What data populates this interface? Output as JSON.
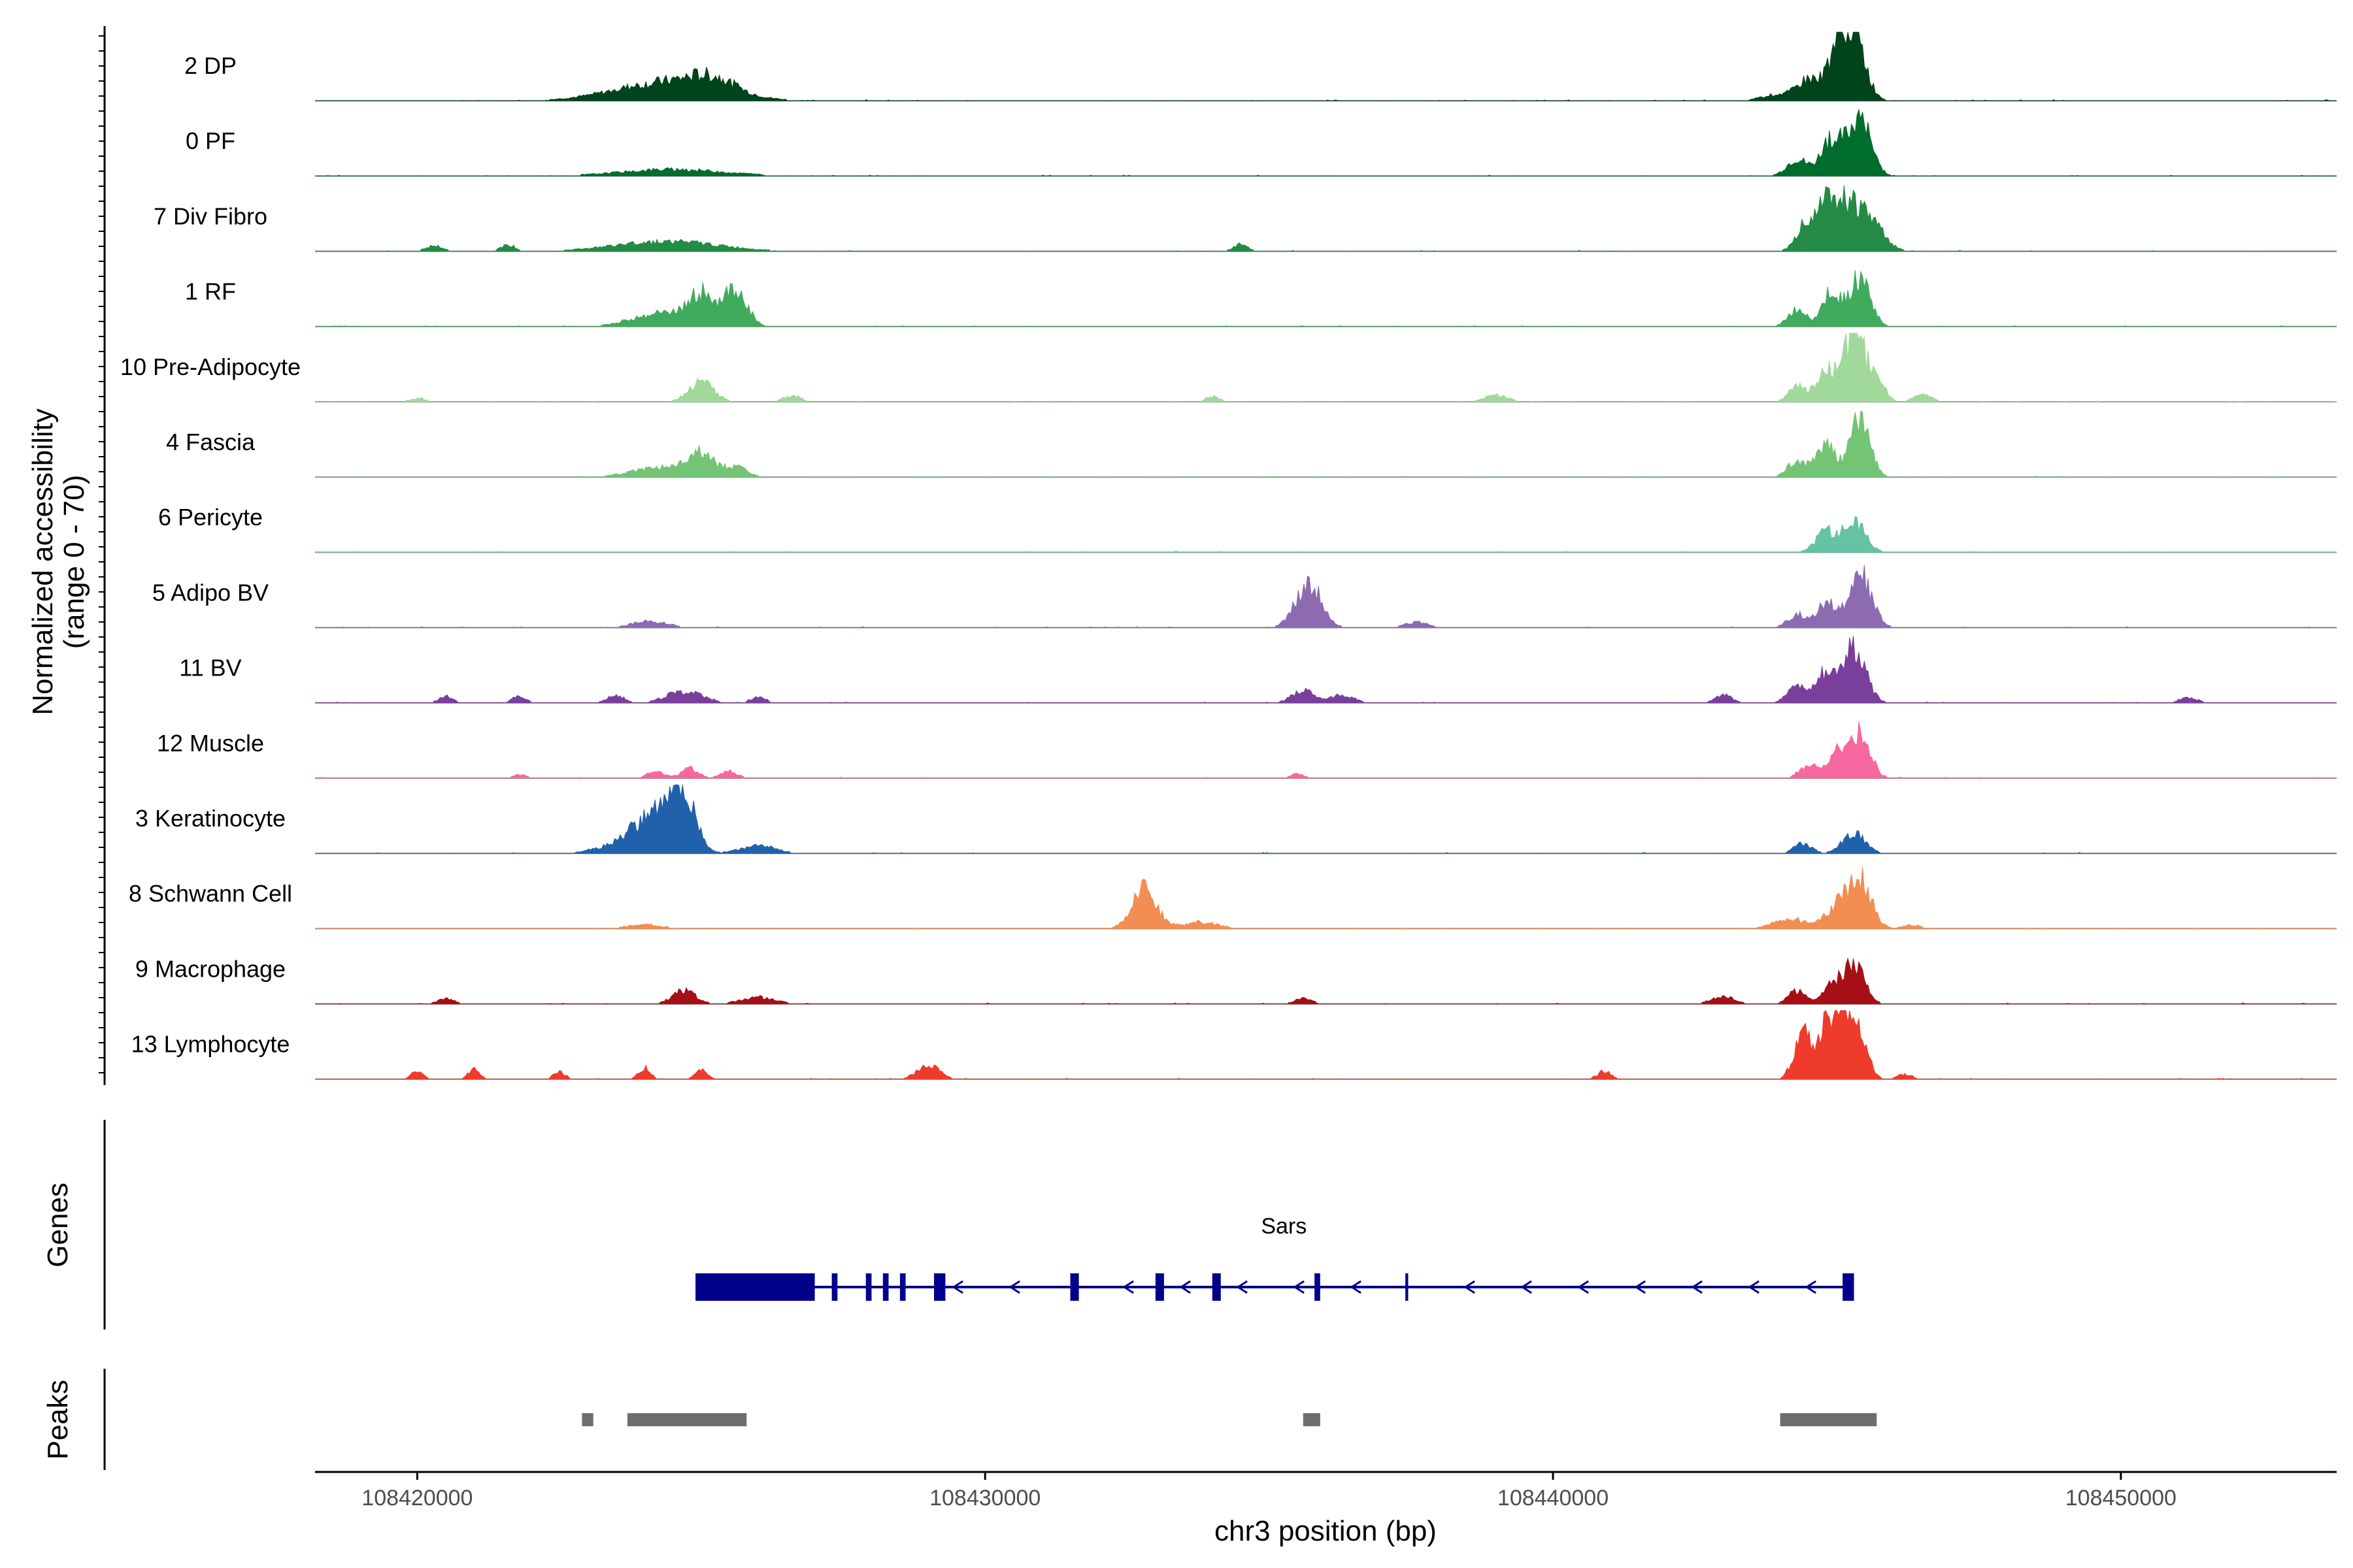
{
  "chart_data": {
    "type": "area",
    "title": "",
    "chromosome": "chr3",
    "xlabel": "chr3 position (bp)",
    "ylabel": "Normalized accessibility",
    "ylabel_range": "(range 0 - 70)",
    "y_range": [
      0,
      70
    ],
    "xlim": [
      108418200,
      108453800
    ],
    "x_ticks": [
      108420000,
      108430000,
      108440000,
      108450000
    ],
    "x_tick_labels": [
      "108420000",
      "108430000",
      "108440000",
      "108450000"
    ],
    "grid": false,
    "tracks": [
      {
        "name": "2 DP",
        "color": "#00441b",
        "peaks": [
          [
            108424400,
            0.28,
            900
          ],
          [
            108425200,
            0.2,
            400
          ],
          [
            108444500,
            0.3,
            180
          ],
          [
            108445000,
            0.7,
            180
          ],
          [
            108445300,
            0.95,
            200
          ],
          [
            108444000,
            0.1,
            300
          ]
        ]
      },
      {
        "name": "0 PF",
        "color": "#006d2c",
        "peaks": [
          [
            108424500,
            0.1,
            900
          ],
          [
            108444300,
            0.25,
            180
          ],
          [
            108444900,
            0.55,
            180
          ],
          [
            108445400,
            0.85,
            200
          ]
        ]
      },
      {
        "name": "7 Div Fibro",
        "color": "#238b45",
        "peaks": [
          [
            108420300,
            0.08,
            150
          ],
          [
            108421600,
            0.1,
            120
          ],
          [
            108424400,
            0.15,
            900
          ],
          [
            108434500,
            0.1,
            120
          ],
          [
            108444500,
            0.5,
            180
          ],
          [
            108444900,
            0.7,
            180
          ],
          [
            108445300,
            0.65,
            220
          ],
          [
            108445700,
            0.3,
            200
          ]
        ]
      },
      {
        "name": "1 RF",
        "color": "#41ab5d",
        "peaks": [
          [
            108424300,
            0.2,
            500
          ],
          [
            108425000,
            0.45,
            220
          ],
          [
            108425600,
            0.55,
            200
          ],
          [
            108444300,
            0.25,
            160
          ],
          [
            108444900,
            0.5,
            160
          ],
          [
            108445400,
            0.75,
            180
          ]
        ]
      },
      {
        "name": "10 Pre-Adipocyte",
        "color": "#a1d99b",
        "peaks": [
          [
            108420000,
            0.05,
            150
          ],
          [
            108425000,
            0.3,
            220
          ],
          [
            108426600,
            0.1,
            150
          ],
          [
            108434000,
            0.08,
            120
          ],
          [
            108439000,
            0.1,
            200
          ],
          [
            108444300,
            0.25,
            150
          ],
          [
            108444800,
            0.45,
            160
          ],
          [
            108445300,
            1.0,
            200
          ],
          [
            108445700,
            0.3,
            150
          ],
          [
            108446500,
            0.12,
            150
          ]
        ]
      },
      {
        "name": "4 Fascia",
        "color": "#74c476",
        "peaks": [
          [
            108424300,
            0.15,
            500
          ],
          [
            108425000,
            0.32,
            220
          ],
          [
            108425600,
            0.15,
            200
          ],
          [
            108444300,
            0.25,
            160
          ],
          [
            108444800,
            0.5,
            160
          ],
          [
            108445400,
            0.85,
            180
          ]
        ]
      },
      {
        "name": "6 Pericyte",
        "color": "#66c2a4",
        "peaks": [
          [
            108444800,
            0.3,
            180
          ],
          [
            108445300,
            0.45,
            200
          ]
        ]
      },
      {
        "name": "5 Adipo BV",
        "color": "#8c6bb1",
        "peaks": [
          [
            108424100,
            0.1,
            300
          ],
          [
            108435700,
            0.7,
            220
          ],
          [
            108437600,
            0.08,
            200
          ],
          [
            108444300,
            0.2,
            160
          ],
          [
            108444800,
            0.4,
            160
          ],
          [
            108445400,
            0.85,
            200
          ]
        ]
      },
      {
        "name": "11 BV",
        "color": "#7a3e9d",
        "peaks": [
          [
            108420500,
            0.1,
            120
          ],
          [
            108421800,
            0.1,
            120
          ],
          [
            108423500,
            0.12,
            150
          ],
          [
            108424700,
            0.18,
            300
          ],
          [
            108426000,
            0.1,
            120
          ],
          [
            108435600,
            0.18,
            200
          ],
          [
            108436300,
            0.12,
            200
          ],
          [
            108443000,
            0.12,
            150
          ],
          [
            108444300,
            0.3,
            160
          ],
          [
            108444800,
            0.45,
            160
          ],
          [
            108445300,
            0.85,
            200
          ],
          [
            108451200,
            0.08,
            150
          ]
        ]
      },
      {
        "name": "12 Muscle",
        "color": "#f768a1",
        "peaks": [
          [
            108421800,
            0.05,
            120
          ],
          [
            108424200,
            0.1,
            150
          ],
          [
            108424800,
            0.15,
            150
          ],
          [
            108425500,
            0.1,
            150
          ],
          [
            108435500,
            0.06,
            120
          ],
          [
            108444500,
            0.2,
            160
          ],
          [
            108445000,
            0.35,
            160
          ],
          [
            108445400,
            0.7,
            180
          ]
        ]
      },
      {
        "name": "3 Keratinocyte",
        "color": "#2161ac",
        "peaks": [
          [
            108423900,
            0.25,
            500
          ],
          [
            108424200,
            0.45,
            280
          ],
          [
            108424700,
            0.9,
            200
          ],
          [
            108426000,
            0.12,
            300
          ],
          [
            108444400,
            0.15,
            150
          ],
          [
            108445300,
            0.3,
            200
          ]
        ]
      },
      {
        "name": "8 Schwann Cell",
        "color": "#f28e52",
        "peaks": [
          [
            108424000,
            0.06,
            300
          ],
          [
            108432800,
            0.6,
            220
          ],
          [
            108433800,
            0.1,
            300
          ],
          [
            108444200,
            0.15,
            300
          ],
          [
            108445000,
            0.3,
            200
          ],
          [
            108445400,
            0.75,
            200
          ],
          [
            108446300,
            0.06,
            150
          ]
        ]
      },
      {
        "name": "9 Macrophage",
        "color": "#a50f15",
        "peaks": [
          [
            108420500,
            0.08,
            150
          ],
          [
            108424700,
            0.2,
            200
          ],
          [
            108426000,
            0.1,
            300
          ],
          [
            108435600,
            0.08,
            150
          ],
          [
            108443000,
            0.12,
            200
          ],
          [
            108444300,
            0.2,
            150
          ],
          [
            108444900,
            0.3,
            150
          ],
          [
            108445300,
            0.6,
            180
          ]
        ]
      },
      {
        "name": "13 Lymphocyte",
        "color": "#ef3b2c",
        "peaks": [
          [
            108420000,
            0.12,
            100
          ],
          [
            108421000,
            0.15,
            100
          ],
          [
            108422500,
            0.12,
            100
          ],
          [
            108424000,
            0.18,
            100
          ],
          [
            108425000,
            0.15,
            100
          ],
          [
            108429000,
            0.2,
            200
          ],
          [
            108440900,
            0.12,
            120
          ],
          [
            108444400,
            0.75,
            150
          ],
          [
            108444900,
            1.0,
            180
          ],
          [
            108445300,
            1.0,
            180
          ],
          [
            108446200,
            0.08,
            120
          ]
        ]
      }
    ],
    "gene": {
      "name": "Sars",
      "start": 108424900,
      "end": 108445300,
      "strand": "-",
      "exons": [
        [
          108424900,
          108427000
        ],
        [
          108427300,
          108427400
        ],
        [
          108427900,
          108428000
        ],
        [
          108428200,
          108428300
        ],
        [
          108428500,
          108428600
        ],
        [
          108429100,
          108429300
        ],
        [
          108431500,
          108431650
        ],
        [
          108433000,
          108433150
        ],
        [
          108434000,
          108434150
        ],
        [
          108435800,
          108435900
        ],
        [
          108437400,
          108437450
        ],
        [
          108445100,
          108445300
        ]
      ]
    },
    "peaks_track": [
      [
        108422900,
        108423100
      ],
      [
        108423700,
        108425800
      ],
      [
        108435600,
        108435900
      ],
      [
        108444000,
        108445700
      ]
    ],
    "panel_labels": {
      "genes": "Genes",
      "peaks": "Peaks"
    }
  }
}
